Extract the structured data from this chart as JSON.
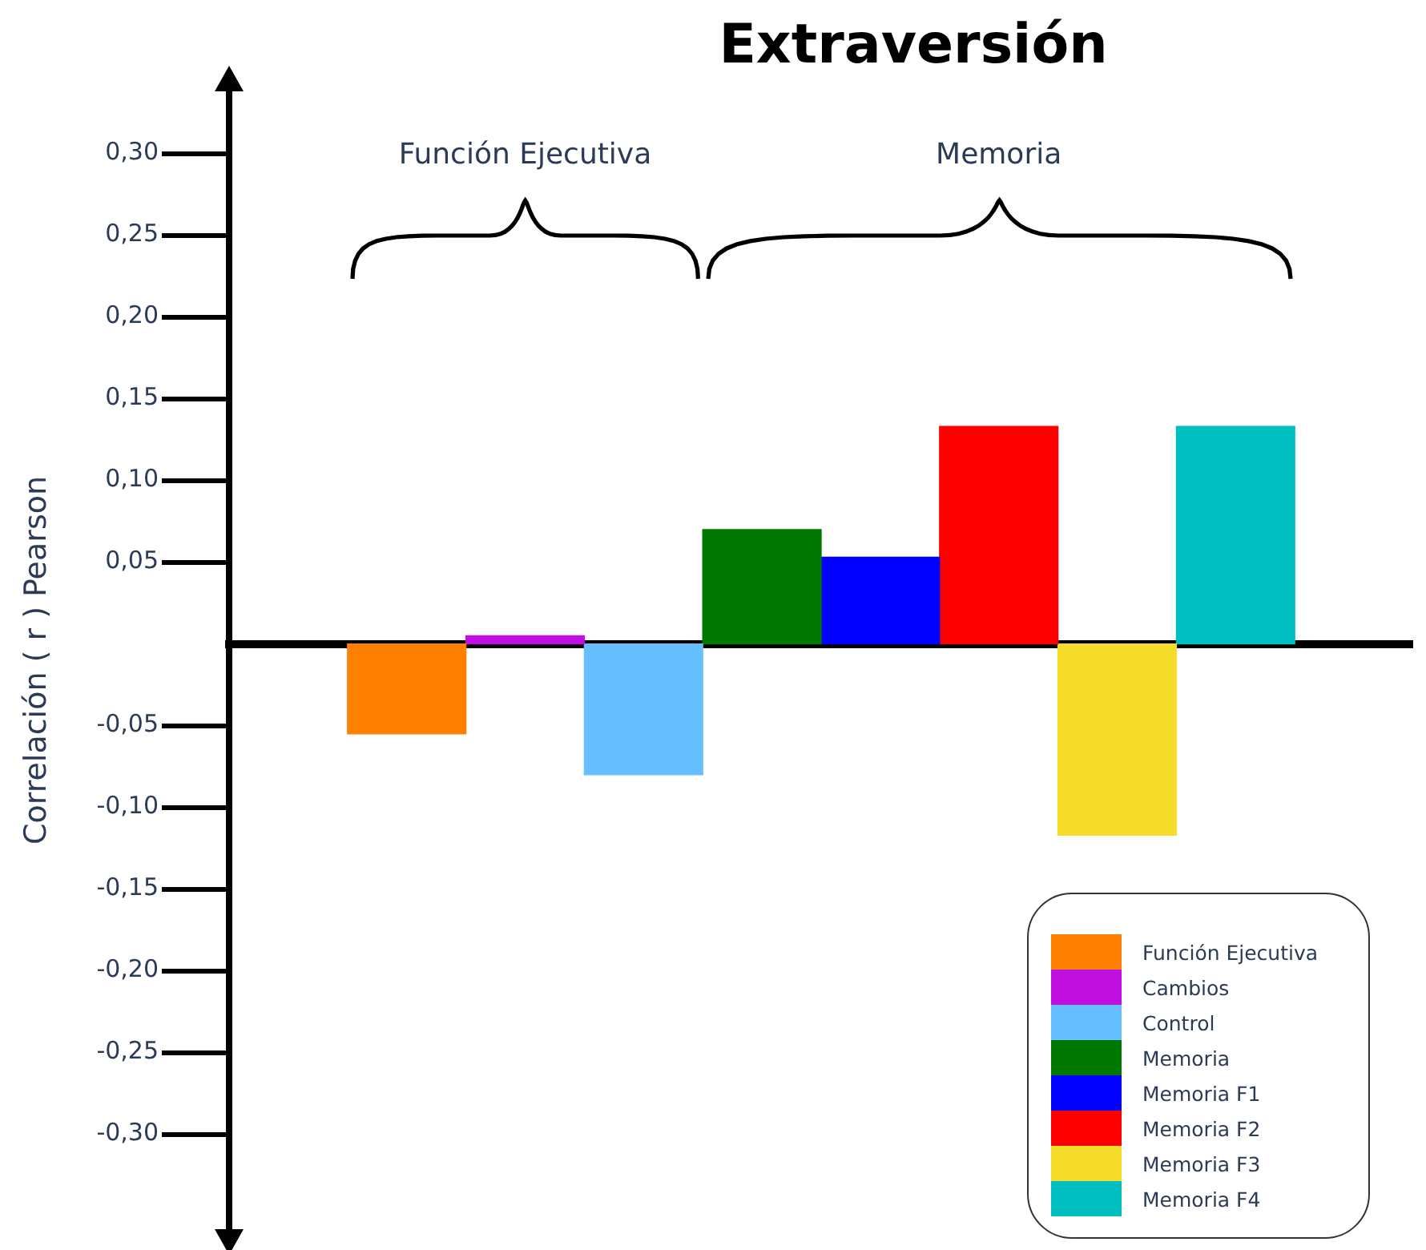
{
  "chart_data": {
    "type": "bar",
    "title": "Extraversión",
    "ylabel": "Correlación ( r ) Pearson",
    "annotations": [
      "Función Ejecutiva",
      "Memoria"
    ],
    "categories": [
      null,
      null,
      null,
      null,
      null,
      null,
      null,
      null,
      null,
      null
    ],
    "series": [
      {
        "name": "Función Ejecutiva",
        "color": "#ff8000",
        "values": [
          null,
          -0.055,
          null,
          null,
          null,
          null,
          null,
          null,
          null,
          null
        ]
      },
      {
        "name": "Cambios",
        "color": "#c010e0",
        "values": [
          null,
          null,
          0.005,
          null,
          null,
          null,
          null,
          null,
          null,
          null
        ]
      },
      {
        "name": "Control",
        "color": "#66bfff",
        "values": [
          null,
          null,
          null,
          -0.08,
          null,
          null,
          null,
          null,
          null,
          null
        ]
      },
      {
        "name": "Memoria",
        "color": "#007800",
        "values": [
          null,
          null,
          null,
          null,
          0.07,
          null,
          null,
          null,
          null,
          null
        ]
      },
      {
        "name": "Memoria F1",
        "color": "#0000ff",
        "values": [
          null,
          null,
          null,
          null,
          null,
          0.053,
          null,
          null,
          null,
          null
        ]
      },
      {
        "name": "Memoria F2",
        "color": "#ff0000",
        "values": [
          null,
          null,
          null,
          null,
          null,
          null,
          0.133,
          null,
          null,
          null
        ]
      },
      {
        "name": "Memoria F3",
        "color": "#f5dc28",
        "values": [
          null,
          null,
          null,
          null,
          null,
          null,
          null,
          -0.117,
          null,
          null
        ]
      },
      {
        "name": "Memoria F4",
        "color": "#00bfc0",
        "values": [
          null,
          null,
          null,
          null,
          null,
          null,
          null,
          null,
          0.133,
          null
        ]
      }
    ],
    "ylim": [
      -0.36,
      0.34
    ],
    "yticks": [
      {
        "value": 0.3,
        "label": "0,30"
      },
      {
        "value": 0.25,
        "label": "0,25"
      },
      {
        "value": 0.2,
        "label": "0,20"
      },
      {
        "value": 0.15,
        "label": "0,15"
      },
      {
        "value": 0.1,
        "label": "0,10"
      },
      {
        "value": 0.05,
        "label": "0,05"
      },
      {
        "value": -0.05,
        "label": "-0,05"
      },
      {
        "value": -0.1,
        "label": "-0,10"
      },
      {
        "value": -0.15,
        "label": "-0,15"
      },
      {
        "value": -0.2,
        "label": "-0,20"
      },
      {
        "value": -0.25,
        "label": "-0,25"
      },
      {
        "value": -0.3,
        "label": "-0,30"
      }
    ],
    "legend": "bottom right"
  }
}
